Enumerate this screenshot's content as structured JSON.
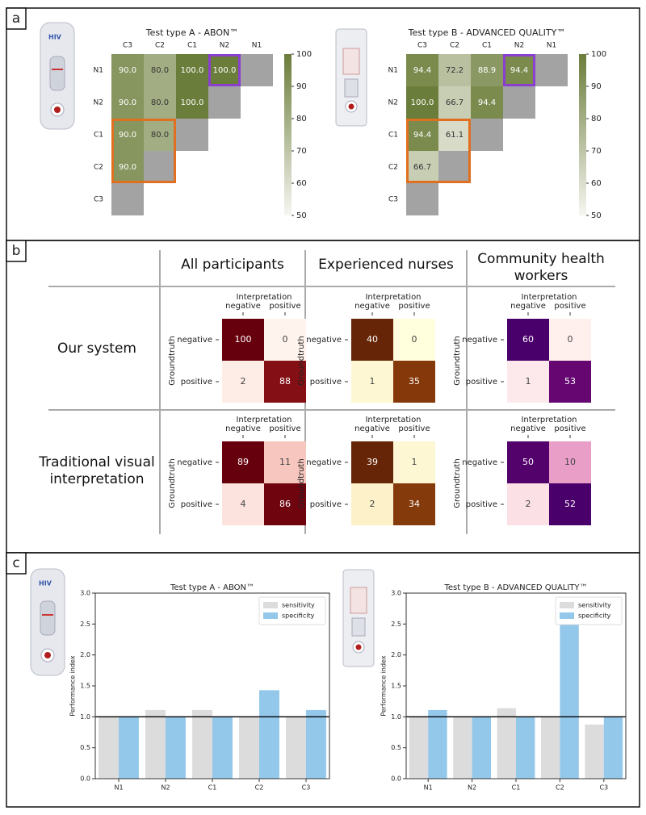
{
  "panel_labels": [
    "a",
    "b",
    "c"
  ],
  "device_text": "HIV",
  "panel_b": {
    "columns": [
      "All participants",
      "Experienced nurses",
      "Community health workers"
    ],
    "rows": [
      "Our system",
      "Traditional visual interpretation"
    ]
  },
  "chart_data": [
    {
      "type": "triangle-heatmap",
      "title": "Test type A - ABON™",
      "x_categories": [
        "C3",
        "C2",
        "C1",
        "N2",
        "N1"
      ],
      "y_categories": [
        "N1",
        "N2",
        "C1",
        "C2",
        "C3"
      ],
      "values": [
        [
          90,
          80,
          100,
          100
        ],
        [
          90,
          80,
          100
        ],
        [
          90,
          80
        ],
        [
          90
        ],
        []
      ],
      "value_labels": [
        [
          "90.0",
          "80.0",
          "100.0",
          "100.0"
        ],
        [
          "90.0",
          "80.0",
          "100.0"
        ],
        [
          "90.0",
          "80.0"
        ],
        [
          "90.0"
        ],
        []
      ],
      "clim": [
        50,
        100
      ],
      "cticks": [
        50,
        60,
        70,
        80,
        90,
        100
      ],
      "colors": [
        "#f6f6f1",
        "#6b7d3a"
      ]
    },
    {
      "type": "triangle-heatmap",
      "title": "Test type B - ADVANCED QUALITY™",
      "x_categories": [
        "C3",
        "C2",
        "C1",
        "N2",
        "N1"
      ],
      "y_categories": [
        "N1",
        "N2",
        "C1",
        "C2",
        "C3"
      ],
      "values": [
        [
          94.4,
          72.2,
          88.9,
          94.4
        ],
        [
          100,
          66.7,
          94.4
        ],
        [
          94.4,
          61.1
        ],
        [
          66.7
        ],
        []
      ],
      "value_labels": [
        [
          "94.4",
          "72.2",
          "88.9",
          "94.4"
        ],
        [
          "100.0",
          "66.7",
          "94.4"
        ],
        [
          "94.4",
          "61.1"
        ],
        [
          "66.7"
        ],
        []
      ],
      "clim": [
        50,
        100
      ],
      "cticks": [
        50,
        60,
        70,
        80,
        90,
        100
      ],
      "colors": [
        "#f6f6f1",
        "#6b7d3a"
      ]
    },
    {
      "type": "confusion",
      "x_label": "Interpretation",
      "y_label": "Groundtruth",
      "x_categories": [
        "negative",
        "positive"
      ],
      "y_categories": [
        "negative",
        "positive"
      ],
      "values": [
        [
          100,
          0
        ],
        [
          2,
          88
        ]
      ],
      "colors": [
        "#fff3ee",
        "#e0402e",
        "#67000d"
      ]
    },
    {
      "type": "confusion",
      "x_label": "Interpretation",
      "y_label": "Groundtruth",
      "x_categories": [
        "negative",
        "positive"
      ],
      "y_categories": [
        "negative",
        "positive"
      ],
      "values": [
        [
          40,
          0
        ],
        [
          1,
          35
        ]
      ],
      "colors": [
        "#ffffdd",
        "#e0751a",
        "#662506"
      ]
    },
    {
      "type": "confusion",
      "x_label": "Interpretation",
      "y_label": "Groundtruth",
      "x_categories": [
        "negative",
        "positive"
      ],
      "y_categories": [
        "negative",
        "positive"
      ],
      "values": [
        [
          60,
          0
        ],
        [
          1,
          53
        ]
      ],
      "colors": [
        "#fff0ee",
        "#c51b8a",
        "#49006a"
      ]
    },
    {
      "type": "confusion",
      "x_label": "Interpretation",
      "y_label": "Groundtruth",
      "x_categories": [
        "negative",
        "positive"
      ],
      "y_categories": [
        "negative",
        "positive"
      ],
      "values": [
        [
          89,
          11
        ],
        [
          4,
          86
        ]
      ],
      "colors": [
        "#fff3ee",
        "#e0402e",
        "#67000d"
      ]
    },
    {
      "type": "confusion",
      "x_label": "Interpretation",
      "y_label": "Groundtruth",
      "x_categories": [
        "negative",
        "positive"
      ],
      "y_categories": [
        "negative",
        "positive"
      ],
      "values": [
        [
          39,
          1
        ],
        [
          2,
          34
        ]
      ],
      "colors": [
        "#ffffdd",
        "#e0751a",
        "#662506"
      ]
    },
    {
      "type": "confusion",
      "x_label": "Interpretation",
      "y_label": "Groundtruth",
      "x_categories": [
        "negative",
        "positive"
      ],
      "y_categories": [
        "negative",
        "positive"
      ],
      "values": [
        [
          50,
          10
        ],
        [
          2,
          52
        ]
      ],
      "colors": [
        "#fff0ee",
        "#c51b8a",
        "#49006a"
      ]
    },
    {
      "type": "bar",
      "title": "Test type A - ABON™",
      "y_label": "Performance index",
      "categories": [
        "N1",
        "N2",
        "C1",
        "C2",
        "C3"
      ],
      "series": [
        {
          "name": "sensitivity",
          "color": "#dcdcdc",
          "values": [
            1,
            1.11,
            1.11,
            1,
            1
          ]
        },
        {
          "name": "specificity",
          "color": "#93c8ea",
          "values": [
            1,
            1,
            1,
            1.43,
            1.11
          ]
        }
      ],
      "ylim": [
        0,
        3
      ],
      "yticks": [
        {
          "value": 0,
          "label": "0.0"
        },
        {
          "value": 0.5,
          "label": "0.5"
        },
        {
          "value": 1,
          "label": "1.0"
        },
        {
          "value": 1.5,
          "label": "1.5"
        },
        {
          "value": 2,
          "label": "2.0"
        },
        {
          "value": 2.5,
          "label": "2.5"
        },
        {
          "value": 3,
          "label": "3.0"
        }
      ],
      "reference_line": 1,
      "legend": "upper right"
    },
    {
      "type": "bar",
      "title": "Test type B - ADVANCED QUALITY™",
      "y_label": "Performance index",
      "categories": [
        "N1",
        "N2",
        "C1",
        "C2",
        "C3"
      ],
      "series": [
        {
          "name": "sensitivity",
          "color": "#dcdcdc",
          "values": [
            1,
            1,
            1.14,
            1,
            0.875
          ]
        },
        {
          "name": "specificity",
          "color": "#93c8ea",
          "values": [
            1.11,
            1,
            1,
            2.5,
            1
          ]
        }
      ],
      "ylim": [
        0,
        3
      ],
      "yticks": [
        {
          "value": 0,
          "label": "0.0"
        },
        {
          "value": 0.5,
          "label": "0.5"
        },
        {
          "value": 1,
          "label": "1.0"
        },
        {
          "value": 1.5,
          "label": "1.5"
        },
        {
          "value": 2,
          "label": "2.0"
        },
        {
          "value": 2.5,
          "label": "2.5"
        },
        {
          "value": 3,
          "label": "3.0"
        }
      ],
      "reference_line": 1,
      "legend": "upper right"
    }
  ]
}
